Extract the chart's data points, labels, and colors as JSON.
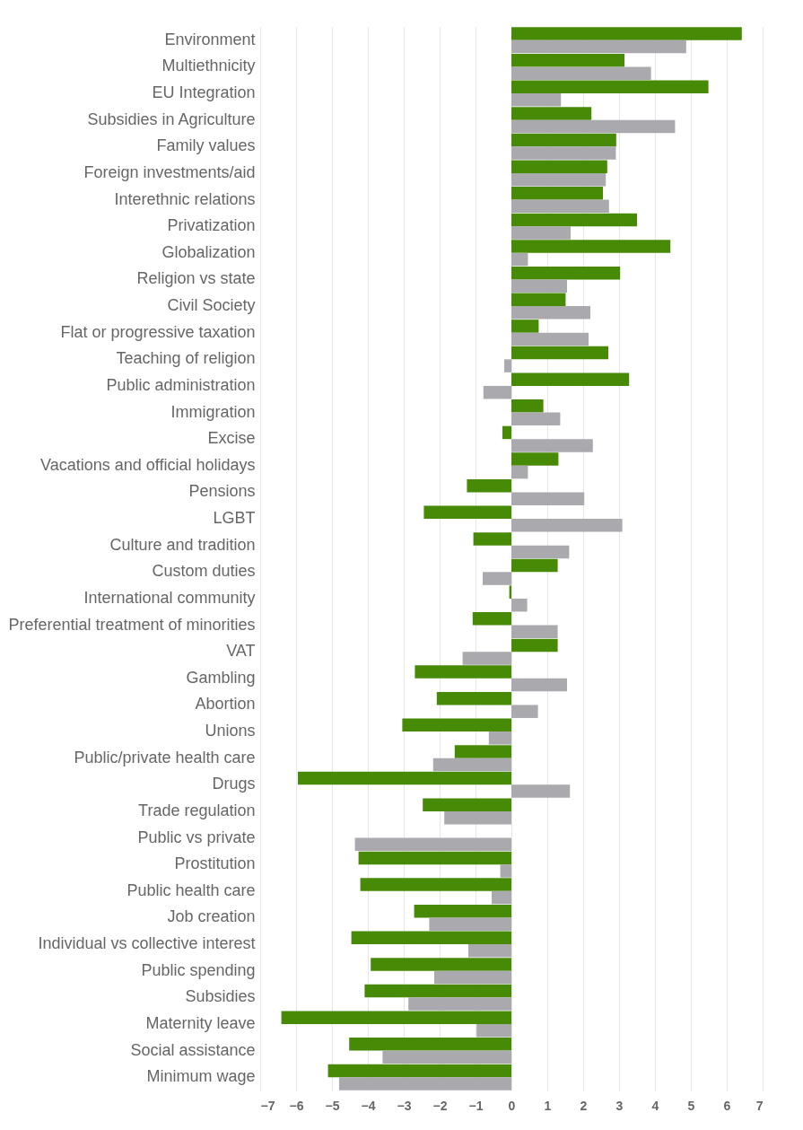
{
  "chart_data": {
    "type": "bar",
    "orientation": "horizontal",
    "categories": [
      "Environment",
      "Multiethnicity",
      "EU Integration",
      "Subsidies in Agriculture",
      "Family values",
      "Foreign investments/aid",
      "Interethnic relations",
      "Privatization",
      "Globalization",
      "Religion vs state",
      "Civil Society",
      "Flat or progressive taxation",
      "Teaching of religion",
      "Public administration",
      "Immigration",
      "Excise",
      "Vacations and official holidays",
      "Pensions",
      "LGBT",
      "Culture and tradition",
      "Custom duties",
      "International community",
      "Preferential treatment of minorities",
      "VAT",
      "Gambling",
      "Abortion",
      "Unions",
      "Public/private health care",
      "Drugs",
      "Trade regulation",
      "Public vs private",
      "Prostitution",
      "Public health care",
      "Job creation",
      "Individual vs collective interest",
      "Public spending",
      "Subsidies",
      "Maternity leave",
      "Social assistance",
      "Minimum wage"
    ],
    "series": [
      {
        "color": "#478a06",
        "values": [
          6.42,
          3.15,
          5.49,
          2.23,
          2.92,
          2.67,
          2.55,
          3.5,
          4.43,
          3.03,
          1.51,
          0.76,
          2.7,
          3.28,
          0.89,
          -0.25,
          1.31,
          -1.24,
          -2.44,
          -1.06,
          1.29,
          -0.06,
          -1.08,
          1.29,
          -2.69,
          -2.08,
          -3.04,
          -1.58,
          -5.95,
          -2.47,
          null,
          -4.26,
          -4.21,
          -2.71,
          -4.46,
          -3.92,
          -4.09,
          -6.41,
          -4.52,
          -5.11
        ]
      },
      {
        "color": "#a9a9ae",
        "values": [
          4.87,
          3.89,
          1.38,
          4.56,
          2.91,
          2.63,
          2.72,
          1.65,
          0.46,
          1.55,
          2.2,
          2.15,
          -0.2,
          -0.78,
          1.36,
          2.27,
          0.46,
          2.03,
          3.09,
          1.61,
          -0.8,
          0.44,
          1.29,
          -1.36,
          1.55,
          0.74,
          -0.63,
          -2.18,
          1.63,
          -1.87,
          -4.36,
          -0.31,
          -0.55,
          -2.29,
          -1.2,
          -2.15,
          -2.87,
          -0.97,
          -3.59,
          -4.8
        ]
      }
    ],
    "xlim": [
      -7,
      7
    ],
    "xticks": [
      -7,
      -6,
      -5,
      -4,
      -3,
      -2,
      -1,
      0,
      1,
      2,
      3,
      4,
      5,
      6,
      7
    ],
    "grid": "x"
  }
}
